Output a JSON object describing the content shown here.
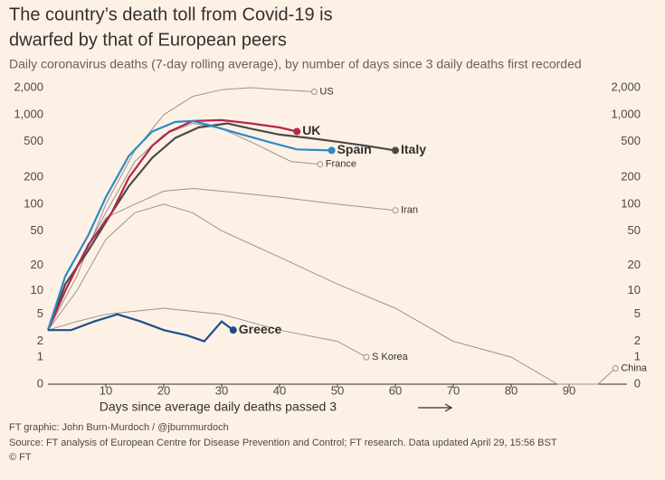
{
  "chart_data": {
    "type": "line",
    "title_lines": [
      "The country’s death toll from Covid-19 is",
      "dwarfed by that of European peers"
    ],
    "subtitle": "Daily coronavirus deaths (7-day rolling average), by number of days since 3 daily deaths first recorded",
    "x_label": "Days since average daily deaths passed 3",
    "footer": [
      "FT graphic: John Burn-Murdoch / @jburnmurdoch",
      "Source: FT analysis of European Centre for Disease Prevention and Control; FT research. Data updated April 29, 15:56 BST",
      "© FT"
    ],
    "yscale": "symlog",
    "xlim": [
      0,
      100
    ],
    "xticks": [
      10,
      20,
      30,
      40,
      50,
      60,
      70,
      80,
      90
    ],
    "ylim": [
      0,
      2000
    ],
    "yticks": [
      0,
      1,
      2,
      5,
      10,
      20,
      50,
      100,
      200,
      500,
      {
        "value": 1000,
        "label": "1,000"
      },
      {
        "value": 2000,
        "label": "2,000"
      }
    ],
    "grid": false,
    "series": [
      {
        "name": "US",
        "color": "#9a9490",
        "x": [
          0,
          5,
          10,
          15,
          20,
          25,
          30,
          35,
          40,
          46
        ],
        "values": [
          3,
          15,
          100,
          400,
          1000,
          1600,
          1900,
          2000,
          1900,
          1800
        ]
      },
      {
        "name": "France",
        "color": "#9a9490",
        "x": [
          0,
          5,
          10,
          15,
          20,
          25,
          30,
          35,
          42,
          47
        ],
        "values": [
          3,
          20,
          80,
          300,
          600,
          800,
          700,
          500,
          300,
          280
        ]
      },
      {
        "name": "Iran",
        "color": "#9a9490",
        "x": [
          0,
          5,
          10,
          15,
          20,
          25,
          30,
          40,
          50,
          60
        ],
        "values": [
          3,
          20,
          70,
          100,
          140,
          150,
          140,
          120,
          100,
          85
        ]
      },
      {
        "name": "S Korea",
        "color": "#9a9490",
        "x": [
          0,
          5,
          10,
          20,
          30,
          40,
          50,
          55
        ],
        "values": [
          3,
          4,
          5,
          6,
          5,
          3,
          2,
          1
        ]
      },
      {
        "name": "China",
        "color": "#9a9490",
        "x": [
          0,
          5,
          10,
          15,
          20,
          25,
          30,
          40,
          50,
          60,
          70,
          80,
          88,
          95,
          98
        ],
        "values": [
          3,
          10,
          40,
          80,
          100,
          80,
          50,
          25,
          12,
          6,
          2,
          1,
          0,
          0,
          0.5
        ]
      },
      {
        "name": "Italy",
        "color": "#4a4a4a",
        "x": [
          0,
          3,
          7,
          11,
          14,
          18,
          22,
          26,
          31,
          35,
          40,
          45,
          50,
          55,
          60
        ],
        "values": [
          3,
          12,
          30,
          80,
          160,
          330,
          550,
          720,
          800,
          700,
          600,
          550,
          500,
          450,
          400
        ]
      },
      {
        "name": "UK",
        "color": "#b5264b",
        "x": [
          0,
          3,
          7,
          11,
          14,
          18,
          21,
          25,
          30,
          35,
          40,
          43
        ],
        "values": [
          3,
          10,
          35,
          80,
          200,
          450,
          650,
          850,
          870,
          800,
          720,
          650
        ]
      },
      {
        "name": "Spain",
        "color": "#2e8ac4",
        "x": [
          0,
          3,
          7,
          10,
          14,
          18,
          22,
          25,
          28,
          32,
          38,
          43,
          49
        ],
        "values": [
          3,
          15,
          45,
          120,
          350,
          650,
          830,
          850,
          760,
          640,
          500,
          410,
          400
        ]
      },
      {
        "name": "Greece",
        "color": "#1e4d8c",
        "x": [
          0,
          4,
          8,
          12,
          16,
          20,
          24,
          27,
          30,
          32
        ],
        "values": [
          3,
          3,
          4,
          5,
          4,
          3,
          2.5,
          2,
          4,
          3
        ]
      }
    ]
  }
}
